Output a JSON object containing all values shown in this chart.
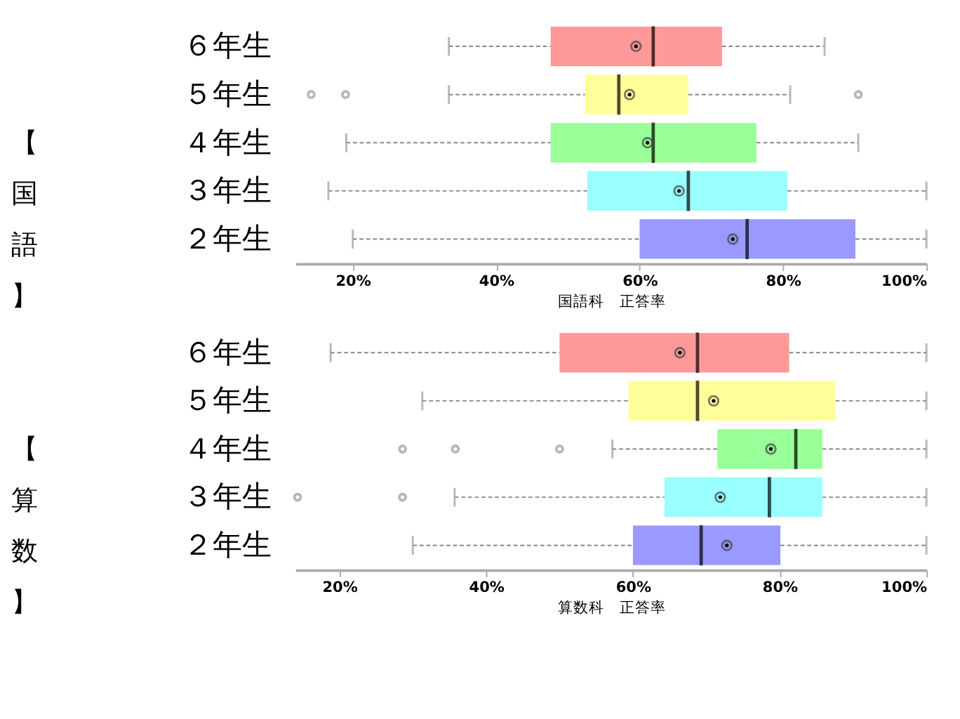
{
  "chart_data": [
    {
      "type": "box",
      "ylabel": "【国語】",
      "xlabel": "国語科　正答率",
      "orientation": "horizontal",
      "categories": [
        "６年生",
        "５年生",
        "４年生",
        "３年生",
        "２年生"
      ],
      "colors": [
        "#ff9999",
        "#ffff99",
        "#99ff99",
        "#99ffff",
        "#9999ff"
      ],
      "boxes": [
        {
          "low": 33.4,
          "q1": 47.6,
          "median": 61.9,
          "q3": 71.5,
          "high": 85.8,
          "mean": 59.5
        },
        {
          "low": 33.4,
          "q1": 52.4,
          "median": 57.1,
          "q3": 66.8,
          "high": 81.0,
          "mean": 58.6,
          "outliers": [
            14.2,
            19.0,
            90.5
          ]
        },
        {
          "low": 19.1,
          "q1": 47.6,
          "median": 61.9,
          "q3": 76.3,
          "high": 90.5,
          "mean": 61.1
        },
        {
          "low": 16.6,
          "q1": 52.7,
          "median": 66.8,
          "q3": 80.6,
          "high": 100,
          "mean": 65.5
        },
        {
          "low": 20,
          "q1": 60,
          "median": 75,
          "q3": 90.1,
          "high": 100,
          "mean": 73
        }
      ],
      "xlim": [
        12,
        100
      ],
      "xticks": [
        {
          "value": 20,
          "label": "20%"
        },
        {
          "value": 40,
          "label": "40%"
        },
        {
          "value": 60,
          "label": "60%"
        },
        {
          "value": 80,
          "label": "80%"
        },
        {
          "value": 100,
          "label": "100%"
        }
      ]
    },
    {
      "type": "box",
      "ylabel": "【算数】",
      "xlabel": "算数科　正答率",
      "orientation": "horizontal",
      "categories": [
        "６年生",
        "５年生",
        "４年生",
        "３年生",
        "２年生"
      ],
      "colors": [
        "#ff9999",
        "#ffff99",
        "#99ff99",
        "#99ffff",
        "#9999ff"
      ],
      "boxes": [
        {
          "low": 18.8,
          "q1": 50,
          "median": 68.8,
          "q3": 81.3,
          "high": 100,
          "mean": 66.4
        },
        {
          "low": 31.3,
          "q1": 59.4,
          "median": 68.8,
          "q3": 87.6,
          "high": 100,
          "mean": 71
        },
        {
          "low": 57.2,
          "q1": 71.5,
          "median": 82.2,
          "q3": 85.8,
          "high": 100,
          "mean": 78.8,
          "outliers": [
            28.6,
            35.8,
            50
          ]
        },
        {
          "low": 35.7,
          "q1": 64.3,
          "median": 78.6,
          "q3": 85.8,
          "high": 100,
          "mean": 71.9,
          "outliers": [
            14.3,
            28.6
          ]
        },
        {
          "low": 30,
          "q1": 60,
          "median": 69.3,
          "q3": 80.1,
          "high": 100,
          "mean": 72.8
        }
      ],
      "xlim": [
        14,
        100
      ],
      "xticks": [
        {
          "value": 20,
          "label": "20%"
        },
        {
          "value": 40,
          "label": "40%"
        },
        {
          "value": 60,
          "label": "60%"
        },
        {
          "value": 80,
          "label": "80%"
        },
        {
          "value": 100,
          "label": "100%"
        }
      ]
    }
  ]
}
